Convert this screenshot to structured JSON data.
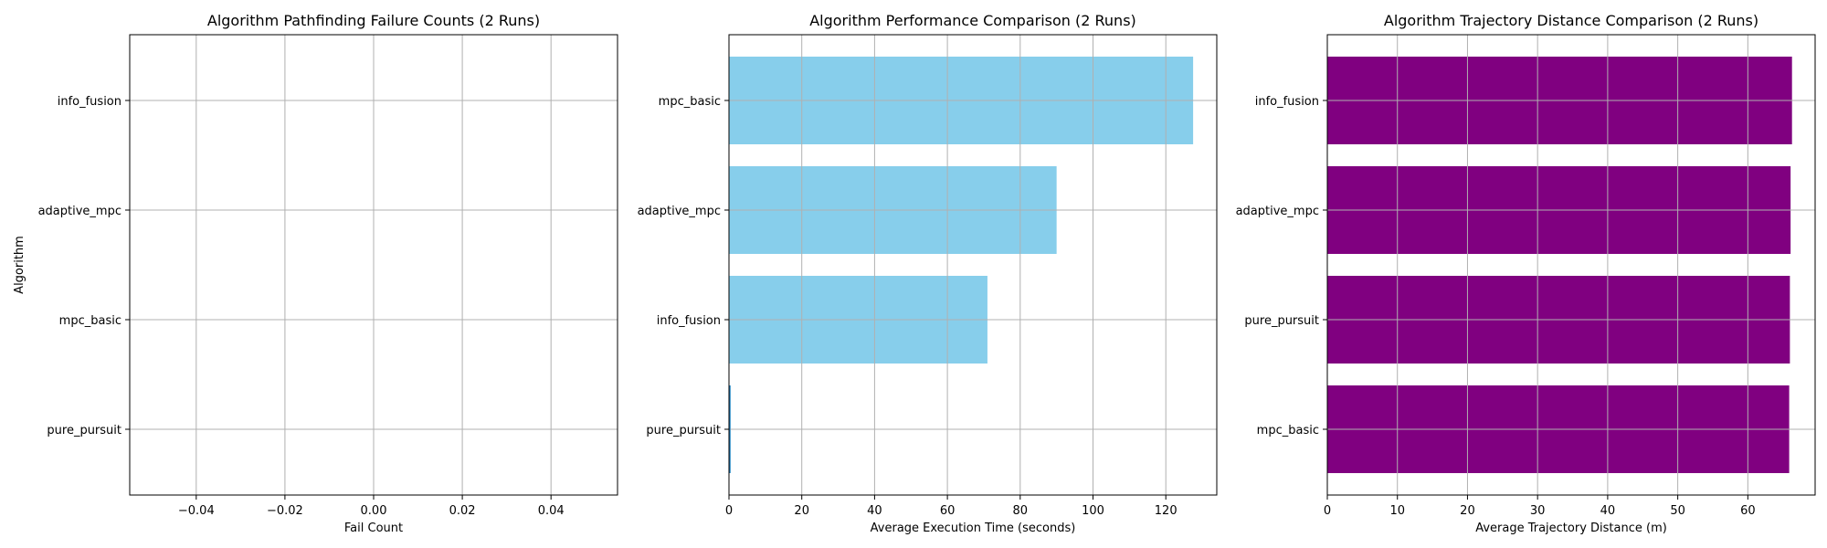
{
  "chart_data": [
    {
      "type": "bar",
      "orientation": "horizontal",
      "title": "Algorithm Pathfinding Failure Counts (2 Runs)",
      "xlabel": "Fail Count",
      "ylabel": "Algorithm",
      "categories": [
        "pure_pursuit",
        "mpc_basic",
        "adaptive_mpc",
        "info_fusion"
      ],
      "values": [
        0,
        0,
        0,
        0
      ],
      "xlim": [
        -0.055,
        0.055
      ],
      "xticks": [
        -0.04,
        -0.02,
        0.0,
        0.02,
        0.04
      ],
      "xtick_labels": [
        "−0.04",
        "−0.02",
        "0.00",
        "0.02",
        "0.04"
      ],
      "bar_color": "#1f77b4",
      "grid": true
    },
    {
      "type": "bar",
      "orientation": "horizontal",
      "title": "Algorithm Performance Comparison (2 Runs)",
      "xlabel": "Average Execution Time (seconds)",
      "ylabel": "",
      "categories": [
        "pure_pursuit",
        "info_fusion",
        "adaptive_mpc",
        "mpc_basic"
      ],
      "values": [
        0.5,
        71,
        90,
        127.5
      ],
      "xlim": [
        0,
        134
      ],
      "xticks": [
        0,
        20,
        40,
        60,
        80,
        100,
        120
      ],
      "xtick_labels": [
        "0",
        "20",
        "40",
        "60",
        "80",
        "100",
        "120"
      ],
      "bar_color": "#87ceeb",
      "grid": true
    },
    {
      "type": "bar",
      "orientation": "horizontal",
      "title": "Algorithm Trajectory Distance Comparison (2 Runs)",
      "xlabel": "Average Trajectory Distance (m)",
      "ylabel": "",
      "categories": [
        "mpc_basic",
        "pure_pursuit",
        "adaptive_mpc",
        "info_fusion"
      ],
      "values": [
        65.9,
        66.0,
        66.1,
        66.3
      ],
      "xlim": [
        0,
        69.6
      ],
      "xticks": [
        0,
        10,
        20,
        30,
        40,
        50,
        60
      ],
      "xtick_labels": [
        "0",
        "10",
        "20",
        "30",
        "40",
        "50",
        "60"
      ],
      "bar_color": "#800080",
      "grid": true
    }
  ]
}
